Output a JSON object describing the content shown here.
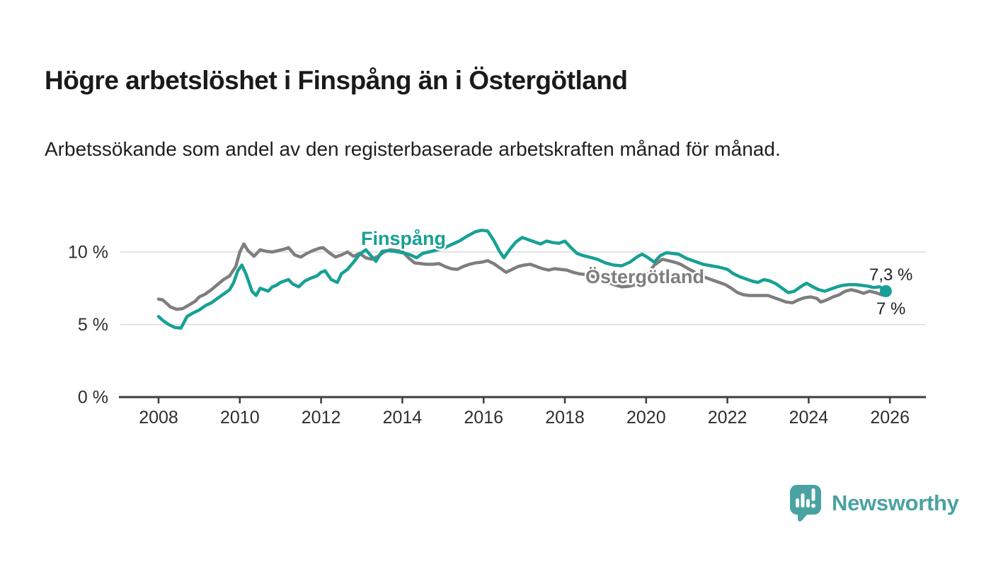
{
  "header": {
    "title": "Högre arbetslöshet i Finspång än i Östergötland",
    "subtitle": "Arbetssökande som andel av den registerbaserade arbetskraften månad för månad."
  },
  "chart_data": {
    "type": "line",
    "title": "Högre arbetslöshet i Finspång än i Östergötland",
    "xlabel": "",
    "ylabel": "Arbetssökande som andel av den registerbaserade arbetskraften",
    "x_ticks": [
      2008,
      2010,
      2012,
      2014,
      2016,
      2018,
      2020,
      2022,
      2024,
      2026
    ],
    "y_ticks": [
      {
        "value": 0,
        "label": "0 %"
      },
      {
        "value": 5,
        "label": "5 %"
      },
      {
        "value": 10,
        "label": "10 %"
      }
    ],
    "xlim": [
      2007.1,
      2026.9
    ],
    "ylim": [
      0,
      12.6
    ],
    "grid": "horizontal",
    "legend_position": "inline-labels",
    "series": [
      {
        "id": "ostergotland",
        "name": "Östergötland",
        "color": "#7e7e7e",
        "latest_value_label": "7 %",
        "points": [
          [
            2008.0,
            6.75
          ],
          [
            2008.1,
            6.7
          ],
          [
            2008.2,
            6.45
          ],
          [
            2008.3,
            6.2
          ],
          [
            2008.45,
            6.05
          ],
          [
            2008.6,
            6.1
          ],
          [
            2008.75,
            6.35
          ],
          [
            2008.9,
            6.6
          ],
          [
            2009.0,
            6.9
          ],
          [
            2009.15,
            7.1
          ],
          [
            2009.3,
            7.4
          ],
          [
            2009.45,
            7.75
          ],
          [
            2009.6,
            8.1
          ],
          [
            2009.75,
            8.35
          ],
          [
            2009.9,
            9.0
          ],
          [
            2010.0,
            10.0
          ],
          [
            2010.1,
            10.55
          ],
          [
            2010.2,
            10.1
          ],
          [
            2010.35,
            9.7
          ],
          [
            2010.5,
            10.15
          ],
          [
            2010.65,
            10.05
          ],
          [
            2010.8,
            10.0
          ],
          [
            2010.95,
            10.1
          ],
          [
            2011.1,
            10.2
          ],
          [
            2011.2,
            10.3
          ],
          [
            2011.35,
            9.8
          ],
          [
            2011.5,
            9.65
          ],
          [
            2011.65,
            9.9
          ],
          [
            2011.8,
            10.1
          ],
          [
            2011.95,
            10.25
          ],
          [
            2012.05,
            10.3
          ],
          [
            2012.2,
            9.95
          ],
          [
            2012.35,
            9.65
          ],
          [
            2012.5,
            9.8
          ],
          [
            2012.65,
            10.0
          ],
          [
            2012.8,
            9.7
          ],
          [
            2012.95,
            9.9
          ],
          [
            2013.1,
            9.6
          ],
          [
            2013.25,
            9.5
          ],
          [
            2013.4,
            9.7
          ],
          [
            2013.55,
            10.0
          ],
          [
            2013.7,
            10.15
          ],
          [
            2013.85,
            10.1
          ],
          [
            2014.0,
            10.05
          ],
          [
            2014.15,
            9.6
          ],
          [
            2014.3,
            9.25
          ],
          [
            2014.45,
            9.2
          ],
          [
            2014.6,
            9.15
          ],
          [
            2014.75,
            9.15
          ],
          [
            2014.9,
            9.2
          ],
          [
            2015.05,
            9.0
          ],
          [
            2015.2,
            8.85
          ],
          [
            2015.35,
            8.8
          ],
          [
            2015.5,
            9.0
          ],
          [
            2015.65,
            9.15
          ],
          [
            2015.8,
            9.25
          ],
          [
            2015.95,
            9.3
          ],
          [
            2016.1,
            9.4
          ],
          [
            2016.25,
            9.2
          ],
          [
            2016.4,
            8.9
          ],
          [
            2016.55,
            8.6
          ],
          [
            2016.7,
            8.8
          ],
          [
            2016.85,
            9.0
          ],
          [
            2017.0,
            9.1
          ],
          [
            2017.15,
            9.15
          ],
          [
            2017.3,
            9.0
          ],
          [
            2017.45,
            8.85
          ],
          [
            2017.6,
            8.75
          ],
          [
            2017.75,
            8.85
          ],
          [
            2017.9,
            8.8
          ],
          [
            2018.05,
            8.75
          ],
          [
            2018.2,
            8.6
          ],
          [
            2018.35,
            8.5
          ],
          [
            2018.5,
            8.45
          ],
          [
            2018.65,
            8.35
          ],
          [
            2018.8,
            8.2
          ],
          [
            2019.0,
            8.0
          ],
          [
            2019.2,
            7.75
          ],
          [
            2019.4,
            7.6
          ],
          [
            2019.6,
            7.65
          ],
          [
            2019.8,
            7.8
          ],
          [
            2020.0,
            8.3
          ],
          [
            2020.2,
            9.1
          ],
          [
            2020.4,
            9.5
          ],
          [
            2020.55,
            9.4
          ],
          [
            2020.7,
            9.3
          ],
          [
            2020.85,
            9.15
          ],
          [
            2021.0,
            8.9
          ],
          [
            2021.2,
            8.6
          ],
          [
            2021.4,
            8.3
          ],
          [
            2021.6,
            8.1
          ],
          [
            2021.8,
            7.9
          ],
          [
            2021.95,
            7.75
          ],
          [
            2022.1,
            7.5
          ],
          [
            2022.25,
            7.2
          ],
          [
            2022.4,
            7.05
          ],
          [
            2022.55,
            7.0
          ],
          [
            2022.7,
            7.0
          ],
          [
            2022.85,
            7.0
          ],
          [
            2023.0,
            7.0
          ],
          [
            2023.15,
            6.85
          ],
          [
            2023.3,
            6.7
          ],
          [
            2023.45,
            6.55
          ],
          [
            2023.6,
            6.5
          ],
          [
            2023.75,
            6.7
          ],
          [
            2023.9,
            6.85
          ],
          [
            2024.05,
            6.9
          ],
          [
            2024.2,
            6.8
          ],
          [
            2024.3,
            6.55
          ],
          [
            2024.45,
            6.7
          ],
          [
            2024.6,
            6.9
          ],
          [
            2024.75,
            7.05
          ],
          [
            2024.9,
            7.3
          ],
          [
            2025.05,
            7.4
          ],
          [
            2025.2,
            7.3
          ],
          [
            2025.35,
            7.15
          ],
          [
            2025.5,
            7.3
          ],
          [
            2025.65,
            7.2
          ],
          [
            2025.8,
            7.05
          ],
          [
            2025.9,
            7.0
          ]
        ]
      },
      {
        "id": "finspang",
        "name": "Finspång",
        "color": "#17a096",
        "latest_value_label": "7,3 %",
        "points": [
          [
            2008.0,
            5.55
          ],
          [
            2008.1,
            5.3
          ],
          [
            2008.25,
            5.0
          ],
          [
            2008.4,
            4.8
          ],
          [
            2008.55,
            4.75
          ],
          [
            2008.7,
            5.55
          ],
          [
            2008.85,
            5.8
          ],
          [
            2009.0,
            6.0
          ],
          [
            2009.15,
            6.3
          ],
          [
            2009.3,
            6.5
          ],
          [
            2009.45,
            6.8
          ],
          [
            2009.6,
            7.1
          ],
          [
            2009.75,
            7.4
          ],
          [
            2009.85,
            7.9
          ],
          [
            2009.95,
            8.7
          ],
          [
            2010.05,
            9.1
          ],
          [
            2010.15,
            8.5
          ],
          [
            2010.3,
            7.3
          ],
          [
            2010.4,
            7.0
          ],
          [
            2010.5,
            7.5
          ],
          [
            2010.6,
            7.4
          ],
          [
            2010.7,
            7.3
          ],
          [
            2010.8,
            7.6
          ],
          [
            2010.9,
            7.7
          ],
          [
            2011.0,
            7.9
          ],
          [
            2011.1,
            8.0
          ],
          [
            2011.2,
            8.1
          ],
          [
            2011.3,
            7.8
          ],
          [
            2011.45,
            7.6
          ],
          [
            2011.6,
            8.0
          ],
          [
            2011.75,
            8.2
          ],
          [
            2011.9,
            8.35
          ],
          [
            2012.0,
            8.6
          ],
          [
            2012.1,
            8.7
          ],
          [
            2012.25,
            8.1
          ],
          [
            2012.4,
            7.9
          ],
          [
            2012.5,
            8.5
          ],
          [
            2012.65,
            8.8
          ],
          [
            2012.8,
            9.3
          ],
          [
            2012.95,
            9.85
          ],
          [
            2013.1,
            10.15
          ],
          [
            2013.35,
            9.35
          ],
          [
            2013.5,
            10.05
          ],
          [
            2013.65,
            10.1
          ],
          [
            2013.8,
            10.05
          ],
          [
            2014.0,
            9.95
          ],
          [
            2014.2,
            9.8
          ],
          [
            2014.35,
            9.6
          ],
          [
            2014.5,
            9.9
          ],
          [
            2014.65,
            10.0
          ],
          [
            2014.8,
            10.1
          ],
          [
            2015.0,
            10.25
          ],
          [
            2015.2,
            10.5
          ],
          [
            2015.4,
            10.75
          ],
          [
            2015.6,
            11.1
          ],
          [
            2015.8,
            11.4
          ],
          [
            2015.95,
            11.5
          ],
          [
            2016.1,
            11.45
          ],
          [
            2016.25,
            10.8
          ],
          [
            2016.4,
            10.0
          ],
          [
            2016.5,
            9.6
          ],
          [
            2016.65,
            10.2
          ],
          [
            2016.8,
            10.7
          ],
          [
            2016.95,
            11.0
          ],
          [
            2017.1,
            10.85
          ],
          [
            2017.25,
            10.7
          ],
          [
            2017.4,
            10.55
          ],
          [
            2017.55,
            10.75
          ],
          [
            2017.7,
            10.65
          ],
          [
            2017.85,
            10.6
          ],
          [
            2018.0,
            10.75
          ],
          [
            2018.15,
            10.3
          ],
          [
            2018.3,
            9.9
          ],
          [
            2018.45,
            9.75
          ],
          [
            2018.6,
            9.65
          ],
          [
            2018.8,
            9.5
          ],
          [
            2019.0,
            9.25
          ],
          [
            2019.2,
            9.1
          ],
          [
            2019.4,
            9.05
          ],
          [
            2019.6,
            9.3
          ],
          [
            2019.8,
            9.7
          ],
          [
            2019.9,
            9.85
          ],
          [
            2020.05,
            9.6
          ],
          [
            2020.2,
            9.3
          ],
          [
            2020.35,
            9.75
          ],
          [
            2020.5,
            9.95
          ],
          [
            2020.65,
            9.9
          ],
          [
            2020.8,
            9.85
          ],
          [
            2021.0,
            9.55
          ],
          [
            2021.2,
            9.35
          ],
          [
            2021.4,
            9.15
          ],
          [
            2021.6,
            9.05
          ],
          [
            2021.8,
            8.95
          ],
          [
            2022.0,
            8.8
          ],
          [
            2022.15,
            8.5
          ],
          [
            2022.3,
            8.3
          ],
          [
            2022.45,
            8.15
          ],
          [
            2022.6,
            8.0
          ],
          [
            2022.75,
            7.9
          ],
          [
            2022.9,
            8.1
          ],
          [
            2023.05,
            8.0
          ],
          [
            2023.2,
            7.8
          ],
          [
            2023.35,
            7.5
          ],
          [
            2023.5,
            7.2
          ],
          [
            2023.65,
            7.3
          ],
          [
            2023.8,
            7.6
          ],
          [
            2023.95,
            7.85
          ],
          [
            2024.1,
            7.6
          ],
          [
            2024.25,
            7.4
          ],
          [
            2024.4,
            7.3
          ],
          [
            2024.55,
            7.45
          ],
          [
            2024.7,
            7.6
          ],
          [
            2024.85,
            7.7
          ],
          [
            2025.0,
            7.75
          ],
          [
            2025.15,
            7.75
          ],
          [
            2025.3,
            7.7
          ],
          [
            2025.45,
            7.65
          ],
          [
            2025.6,
            7.55
          ],
          [
            2025.75,
            7.6
          ],
          [
            2025.9,
            7.3
          ]
        ]
      }
    ],
    "annotations": {
      "finspang_value": "7,3 %",
      "ostergotland_value": "7 %"
    }
  },
  "footer": {
    "brand": "Newsworthy",
    "brand_color": "#4aa2a2",
    "logo_icon": "speech-bubble-bar-chart"
  }
}
